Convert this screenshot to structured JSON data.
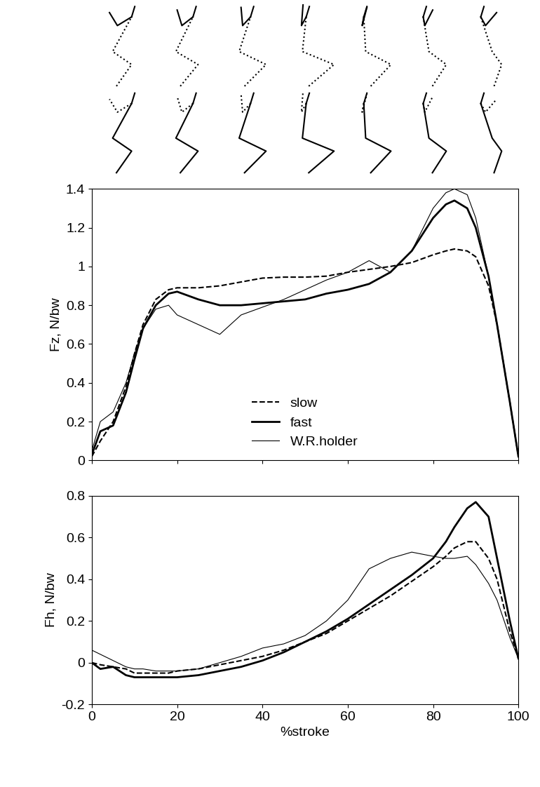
{
  "chart_data": [
    {
      "type": "line",
      "y_label": "Fz, N/bw",
      "x": [
        0,
        2,
        5,
        8,
        10,
        12,
        15,
        18,
        20,
        25,
        30,
        35,
        40,
        45,
        50,
        55,
        60,
        65,
        70,
        75,
        80,
        83,
        85,
        88,
        90,
        93,
        95,
        98,
        100
      ],
      "series": [
        {
          "name": "slow",
          "color": "#000000",
          "line_style": "dashed",
          "values": [
            0.02,
            0.1,
            0.2,
            0.38,
            0.55,
            0.7,
            0.83,
            0.88,
            0.89,
            0.89,
            0.9,
            0.92,
            0.94,
            0.945,
            0.945,
            0.95,
            0.97,
            0.985,
            1.0,
            1.02,
            1.06,
            1.08,
            1.09,
            1.08,
            1.05,
            0.9,
            0.7,
            0.3,
            0.02
          ]
        },
        {
          "name": "fast",
          "color": "#000000",
          "line_style": "solid",
          "values": [
            0.03,
            0.15,
            0.18,
            0.35,
            0.52,
            0.68,
            0.8,
            0.86,
            0.87,
            0.83,
            0.8,
            0.8,
            0.81,
            0.82,
            0.83,
            0.86,
            0.88,
            0.91,
            0.97,
            1.08,
            1.25,
            1.32,
            1.34,
            1.3,
            1.2,
            0.95,
            0.7,
            0.3,
            0.02
          ]
        },
        {
          "name": "W.R.holder",
          "color": "#000000",
          "line_style": "solid",
          "values": [
            0.05,
            0.2,
            0.25,
            0.4,
            0.55,
            0.68,
            0.78,
            0.8,
            0.75,
            0.7,
            0.65,
            0.75,
            0.79,
            0.83,
            0.88,
            0.93,
            0.97,
            1.03,
            0.97,
            1.08,
            1.3,
            1.38,
            1.4,
            1.37,
            1.25,
            0.95,
            0.7,
            0.3,
            0.02
          ]
        }
      ],
      "xlim": [
        0,
        100
      ],
      "xticks": [
        0,
        20,
        40,
        60,
        80,
        100
      ],
      "ylim": [
        0,
        1.4
      ],
      "yticks": [
        0,
        0.2,
        0.4,
        0.6,
        0.8,
        1,
        1.2,
        1.4
      ],
      "legend": "lower center",
      "tick_labels": "y"
    },
    {
      "type": "line",
      "x_label": "%stroke",
      "y_label": "Fh, N/bw",
      "x": [
        0,
        2,
        5,
        8,
        10,
        12,
        15,
        18,
        20,
        25,
        30,
        35,
        40,
        45,
        50,
        55,
        60,
        65,
        70,
        75,
        80,
        83,
        85,
        88,
        90,
        93,
        95,
        98,
        100
      ],
      "series": [
        {
          "name": "slow",
          "color": "#000000",
          "line_style": "dashed",
          "values": [
            0,
            -0.01,
            -0.02,
            -0.03,
            -0.05,
            -0.05,
            -0.05,
            -0.05,
            -0.04,
            -0.03,
            -0.01,
            0.01,
            0.03,
            0.06,
            0.1,
            0.14,
            0.2,
            0.26,
            0.32,
            0.39,
            0.46,
            0.51,
            0.55,
            0.58,
            0.58,
            0.5,
            0.4,
            0.15,
            0.02
          ]
        },
        {
          "name": "fast",
          "color": "#000000",
          "line_style": "solid",
          "values": [
            0,
            -0.03,
            -0.02,
            -0.06,
            -0.07,
            -0.07,
            -0.07,
            -0.07,
            -0.07,
            -0.06,
            -0.04,
            -0.02,
            0.01,
            0.05,
            0.1,
            0.15,
            0.21,
            0.28,
            0.35,
            0.42,
            0.5,
            0.58,
            0.65,
            0.74,
            0.77,
            0.7,
            0.5,
            0.2,
            0.02
          ]
        },
        {
          "name": "W.R.holder",
          "color": "#000000",
          "line_style": "solid",
          "values": [
            0.06,
            0.04,
            0.01,
            -0.02,
            -0.03,
            -0.03,
            -0.04,
            -0.04,
            -0.04,
            -0.03,
            0,
            0.03,
            0.07,
            0.09,
            0.13,
            0.2,
            0.3,
            0.45,
            0.5,
            0.53,
            0.51,
            0.5,
            0.5,
            0.51,
            0.47,
            0.38,
            0.3,
            0.12,
            0.02
          ]
        }
      ],
      "xlim": [
        0,
        100
      ],
      "xticks": [
        0,
        20,
        40,
        60,
        80,
        100
      ],
      "ylim": [
        -0.2,
        0.8
      ],
      "yticks": [
        -0.2,
        0,
        0.2,
        0.4,
        0.6,
        0.8
      ]
    }
  ]
}
